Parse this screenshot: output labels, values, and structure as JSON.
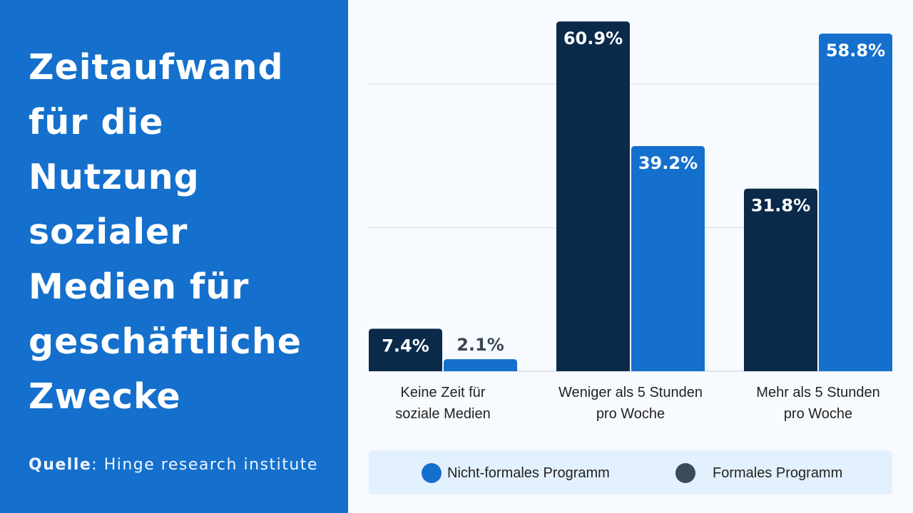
{
  "title_lines": [
    "Zeitaufwand",
    "für die",
    "Nutzung",
    "sozialer",
    "Medien für",
    "geschäftliche",
    "Zwecke"
  ],
  "source": {
    "label": "Quelle",
    "text": ": Hinge research institute"
  },
  "colors": {
    "panel": "#1470cc",
    "formal": "#0b2a4a",
    "nonformal": "#1470cc",
    "legend_bg": "#e3f0fd"
  },
  "chart_data": {
    "type": "bar",
    "categories": [
      [
        "Keine Zeit für",
        "soziale Medien"
      ],
      [
        "Weniger als 5 Stunden",
        "pro Woche"
      ],
      [
        "Mehr als 5 Stunden",
        "pro Woche"
      ]
    ],
    "series": [
      {
        "name": "Formales Programm",
        "color": "#0b2a4a",
        "values": [
          7.4,
          60.9,
          31.8
        ],
        "labels": [
          "7.4%",
          "60.9%",
          "31.8%"
        ]
      },
      {
        "name": "Nicht-formales Programm",
        "color": "#1470cc",
        "values": [
          2.1,
          39.2,
          58.8
        ],
        "labels": [
          "2.1%",
          "39.2%",
          "58.8%"
        ]
      }
    ],
    "ylim": [
      0,
      61
    ],
    "gridlines": [
      25,
      50
    ],
    "grid": true,
    "legend_position": "bottom",
    "xlabel": "",
    "ylabel": ""
  },
  "legend": [
    {
      "label": "Nicht-formales Programm",
      "color": "#1470cc"
    },
    {
      "label": "Formales Programm",
      "color": "#3a4a5a"
    }
  ]
}
